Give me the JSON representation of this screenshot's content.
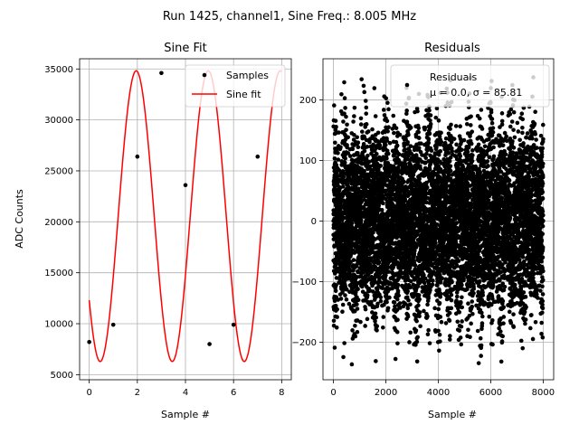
{
  "figure": {
    "suptitle": "Run 1425, channel1, Sine Freq.: 8.005 MHz"
  },
  "chart_data": [
    {
      "type": "line",
      "title": "Sine Fit",
      "xlabel": "Sample #",
      "ylabel": "ADC Counts",
      "xlim": [
        -0.4,
        8.4
      ],
      "ylim": [
        4500,
        36000
      ],
      "xticks": [
        0,
        2,
        4,
        6,
        8
      ],
      "yticks": [
        5000,
        10000,
        15000,
        20000,
        25000,
        30000,
        35000
      ],
      "grid": true,
      "legend_position": "top-right",
      "series": [
        {
          "name": "Samples",
          "style": "markers",
          "color": "#000000",
          "x": [
            0,
            1,
            2,
            3,
            4,
            5,
            6,
            7
          ],
          "y": [
            8200,
            9900,
            26400,
            34600,
            23600,
            8000,
            9900,
            26400
          ]
        },
        {
          "name": "Sine fit",
          "style": "line",
          "color": "#ff0000",
          "model": {
            "offset": 20555,
            "amplitude": 14265,
            "period": 2.995,
            "phase_sample": 0.455,
            "x_range": [
              0,
              8
            ]
          }
        }
      ]
    },
    {
      "type": "scatter",
      "title": "Residuals",
      "xlabel": "Sample #",
      "ylabel": "",
      "xlim": [
        -400,
        8400
      ],
      "ylim": [
        -262,
        268
      ],
      "xticks": [
        0,
        2000,
        4000,
        6000,
        8000
      ],
      "yticks": [
        -200,
        -100,
        0,
        100,
        200
      ],
      "grid": true,
      "legend_position": "top-right",
      "series": [
        {
          "name": "Residuals",
          "legend_line2": "μ = 0.0, σ = 85.81",
          "color": "#000000",
          "n_points": 8000,
          "x_range": [
            0,
            8000
          ],
          "mean": 0.0,
          "std": 85.81,
          "min": -237,
          "max": 238
        }
      ]
    }
  ]
}
